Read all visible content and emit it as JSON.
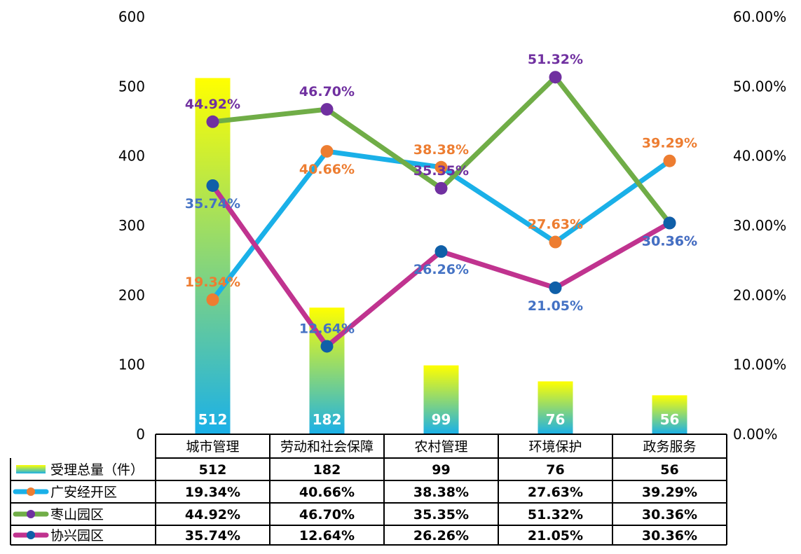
{
  "chart_data": {
    "type": "bar",
    "categories": [
      "城市管理",
      "劳动和社会保障",
      "农村管理",
      "环境保护",
      "政务服务"
    ],
    "y_left": {
      "min": 0,
      "max": 600,
      "ticks": [
        "0",
        "100",
        "200",
        "300",
        "400",
        "500",
        "600"
      ]
    },
    "y_right": {
      "min": 0,
      "max": 0.6,
      "ticks": [
        "0.00%",
        "10.00%",
        "20.00%",
        "30.00%",
        "40.00%",
        "50.00%",
        "60.00%"
      ]
    },
    "bar_series": {
      "name": "受理总量（件）",
      "values": [
        512,
        182,
        99,
        76,
        56
      ],
      "labels": [
        "512",
        "182",
        "99",
        "76",
        "56"
      ],
      "color_top": "#ffff00",
      "color_bottom": "#1ab0e8"
    },
    "line_series": [
      {
        "name": "广安经开区",
        "color": "#1ab0e8",
        "marker_color": "#ed7d31",
        "label_color": "#ed7d31",
        "values": [
          0.1934,
          0.4066,
          0.3838,
          0.2763,
          0.3929
        ],
        "labels": [
          "19.34%",
          "40.66%",
          "38.38%",
          "27.63%",
          "39.29%"
        ]
      },
      {
        "name": "枣山园区",
        "color": "#70ad47",
        "marker_color": "#7030a0",
        "label_color": "#7030a0",
        "values": [
          0.4492,
          0.467,
          0.3535,
          0.5132,
          0.3036
        ],
        "labels": [
          "44.92%",
          "46.70%",
          "35.35%",
          "51.32%",
          "30.36%"
        ]
      },
      {
        "name": "协兴园区",
        "color": "#c0338f",
        "marker_color": "#0f5fa8",
        "label_color": "#4472c4",
        "values": [
          0.3574,
          0.1264,
          0.2626,
          0.2105,
          0.3036
        ],
        "labels": [
          "35.74%",
          "12.64%",
          "26.26%",
          "21.05%",
          "30.36%"
        ]
      }
    ],
    "table": {
      "rows": [
        [
          "512",
          "182",
          "99",
          "76",
          "56"
        ],
        [
          "19.34%",
          "40.66%",
          "38.38%",
          "27.63%",
          "39.29%"
        ],
        [
          "44.92%",
          "46.70%",
          "35.35%",
          "51.32%",
          "30.36%"
        ],
        [
          "35.74%",
          "12.64%",
          "26.26%",
          "21.05%",
          "30.36%"
        ]
      ]
    }
  }
}
